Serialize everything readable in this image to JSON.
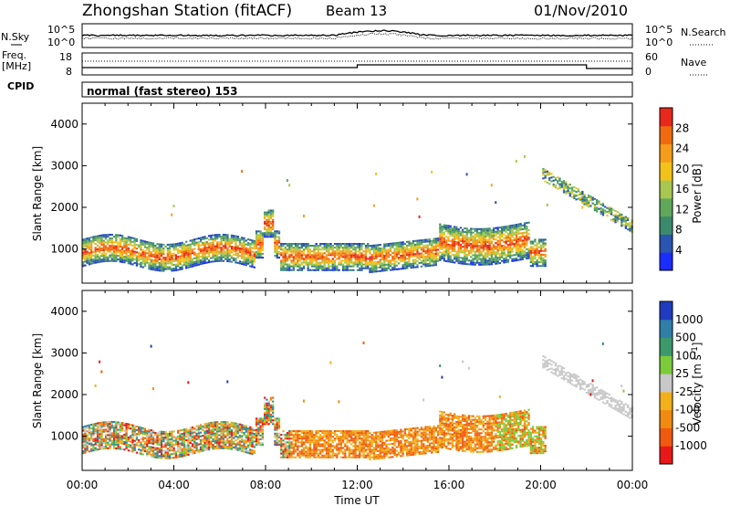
{
  "header": {
    "title": "Zhongshan Station (fitACF)",
    "beam": "Beam 13",
    "date": "01/Nov/2010"
  },
  "noise_panel": {
    "left_label": "N.Sky",
    "right_label": "N.Search",
    "left_ticks": [
      "10^5",
      "10^0"
    ],
    "right_ticks": [
      "10^5",
      "10^0"
    ]
  },
  "freq_panel": {
    "left_label_1": "Freq.",
    "left_label_2": "[MHz]",
    "right_label": "Nave",
    "left_ticks": [
      "18",
      "8"
    ],
    "right_ticks": [
      "60",
      "0"
    ]
  },
  "cpid": {
    "label": "CPID",
    "value": "normal (fast stereo) 153"
  },
  "chart_data": [
    {
      "type": "heatmap",
      "name": "power",
      "ylabel": "Slant Range [km]",
      "xlabel": "",
      "yticks": [
        "1000",
        "2000",
        "3000",
        "4000"
      ],
      "ylim": [
        180,
        4500
      ],
      "xlim_hours": [
        0,
        24
      ],
      "colorbar": {
        "label": "Power [dB]",
        "ticks": [
          "4",
          "8",
          "12",
          "16",
          "20",
          "24",
          "28"
        ],
        "colors": [
          "#1a2cff",
          "#2a55b0",
          "#3c8a6e",
          "#5fa85a",
          "#a6c850",
          "#f2c21a",
          "#f59d1a",
          "#f06a10",
          "#e8281a"
        ]
      }
    },
    {
      "type": "heatmap",
      "name": "velocity",
      "ylabel": "Slant Range [km]",
      "xlabel": "Time UT",
      "yticks": [
        "1000",
        "2000",
        "3000",
        "4000"
      ],
      "ylim": [
        180,
        4500
      ],
      "xticks": [
        "00:00",
        "04:00",
        "08:00",
        "12:00",
        "16:00",
        "20:00",
        "00:00"
      ],
      "xlim_hours": [
        0,
        24
      ],
      "colorbar": {
        "label": "Velocity [m s-1]",
        "label_main": "Velocity [m s",
        "label_sup": "-1",
        "label_end": "]",
        "ticks": [
          "1000",
          "500",
          "100",
          "25",
          "-25",
          "-100",
          "-500",
          "-1000"
        ],
        "colors": [
          "#1f3cc0",
          "#2f7fa8",
          "#3c9a6a",
          "#7ccc3a",
          "#c8c8c8",
          "#f2b01a",
          "#f08a10",
          "#f05a10",
          "#e81818"
        ]
      }
    }
  ]
}
